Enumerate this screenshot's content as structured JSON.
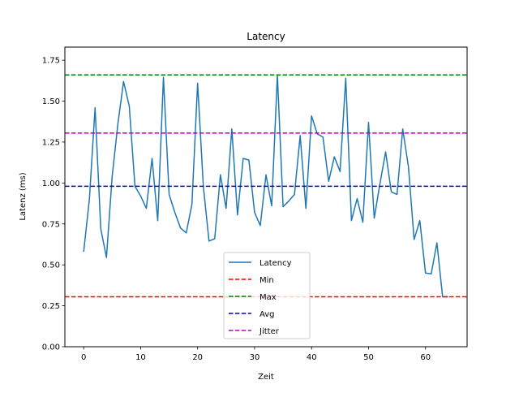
{
  "chart_data": {
    "type": "line",
    "title": "Latency",
    "xlabel": "Zeit",
    "ylabel": "Latenz (ms)",
    "xlim": [
      -3.3,
      67.3
    ],
    "ylim": [
      0.0,
      1.83
    ],
    "xticks": [
      0,
      10,
      20,
      30,
      40,
      50,
      60
    ],
    "yticks": [
      0.0,
      0.25,
      0.5,
      0.75,
      1.0,
      1.25,
      1.5,
      1.75
    ],
    "ytick_labels": [
      "0.00",
      "0.25",
      "0.50",
      "0.75",
      "1.00",
      "1.25",
      "1.50",
      "1.75"
    ],
    "grid": false,
    "legend_position": "lower center",
    "series": [
      {
        "name": "Latency",
        "color": "#1f77b4",
        "style": "solid",
        "x": [
          0,
          1,
          2,
          3,
          4,
          5,
          6,
          7,
          8,
          9,
          10,
          11,
          12,
          13,
          14,
          15,
          16,
          17,
          18,
          19,
          20,
          21,
          22,
          23,
          24,
          25,
          26,
          27,
          28,
          29,
          30,
          31,
          32,
          33,
          34,
          35,
          36,
          37,
          38,
          39,
          40,
          41,
          42,
          43,
          44,
          45,
          46,
          47,
          48,
          49,
          50,
          51,
          52,
          53,
          54,
          55,
          56,
          57,
          58,
          59,
          60,
          61,
          62,
          63,
          64
        ],
        "values": [
          0.58,
          0.9,
          1.46,
          0.72,
          0.545,
          1.04,
          1.36,
          1.62,
          1.47,
          0.98,
          0.92,
          0.845,
          1.15,
          0.77,
          1.645,
          0.93,
          0.82,
          0.725,
          0.695,
          0.87,
          1.61,
          0.98,
          0.645,
          0.66,
          1.05,
          0.845,
          1.33,
          0.805,
          1.15,
          1.14,
          0.82,
          0.74,
          1.05,
          0.86,
          1.66,
          0.855,
          0.89,
          0.93,
          1.29,
          0.845,
          1.41,
          1.3,
          1.28,
          1.01,
          1.16,
          1.07,
          1.64,
          0.77,
          0.905,
          0.76,
          1.37,
          0.785,
          0.995,
          1.19,
          0.945,
          0.93,
          1.33,
          1.1,
          0.655,
          0.77,
          0.45,
          0.445,
          0.635,
          0.305,
          0.305
        ]
      },
      {
        "name": "Min",
        "color": "#ff0000",
        "style": "dashed",
        "hline": 0.305
      },
      {
        "name": "Max",
        "color": "#008000",
        "style": "dashed",
        "hline": 1.66
      },
      {
        "name": "Avg",
        "color": "#0000cc",
        "style": "dashed",
        "hline": 0.98
      },
      {
        "name": "Jitter",
        "color": "#bf00bf",
        "style": "dashed",
        "hline": 1.305
      }
    ]
  }
}
